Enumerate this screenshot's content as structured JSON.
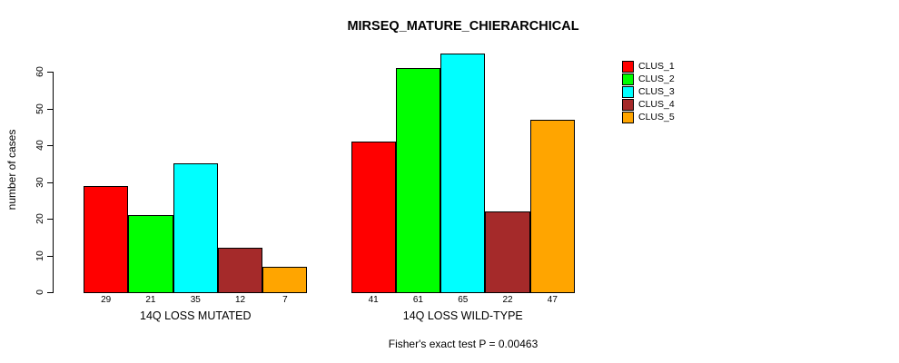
{
  "chart_data": {
    "type": "bar",
    "title": "MIRSEQ_MATURE_CHIERARCHICAL",
    "ylabel": "number of cases",
    "xlabel": "",
    "ylim": [
      0,
      65
    ],
    "yticks": [
      0,
      10,
      20,
      30,
      40,
      50,
      60
    ],
    "grid": false,
    "legend_position": "top-right",
    "categories": [
      "14Q LOSS MUTATED",
      "14Q LOSS WILD-TYPE"
    ],
    "series": [
      {
        "name": "CLUS_1",
        "color": "#FF0000",
        "values": [
          29,
          41
        ]
      },
      {
        "name": "CLUS_2",
        "color": "#00FF00",
        "values": [
          21,
          61
        ]
      },
      {
        "name": "CLUS_3",
        "color": "#00FFFF",
        "values": [
          35,
          65
        ]
      },
      {
        "name": "CLUS_4",
        "color": "#A52A2A",
        "values": [
          12,
          22
        ]
      },
      {
        "name": "CLUS_5",
        "color": "#FFA500",
        "values": [
          7,
          47
        ]
      }
    ],
    "bar_value_labels": {
      "14Q LOSS MUTATED": [
        29,
        21,
        35,
        12,
        7
      ],
      "14Q LOSS WILD-TYPE": [
        41,
        61,
        65,
        22,
        47
      ]
    },
    "annotation": "Fisher's exact test P = 0.00463"
  }
}
